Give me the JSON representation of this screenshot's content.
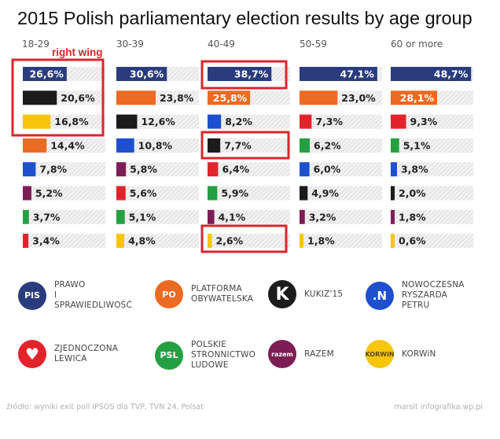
{
  "title": "2015 Polish parliamentary election results by age group",
  "annotation": "right wing",
  "chart_data": {
    "type": "bar",
    "title": "2015 Polish parliamentary election results by age group",
    "age_groups": [
      {
        "label": "18-29",
        "bars": [
          {
            "party": "pis",
            "color": "#2a3c7d",
            "value": 26.6,
            "label": "26,6%"
          },
          {
            "party": "kukiz",
            "color": "#1b1b1b",
            "value": 20.6,
            "label": "20,6%"
          },
          {
            "party": "korwin",
            "color": "#f7c60a",
            "value": 16.8,
            "label": "16,8%"
          },
          {
            "party": "po",
            "color": "#ec6a21",
            "value": 14.4,
            "label": "14,4%"
          },
          {
            "party": "nowoczesna",
            "color": "#1d4fcf",
            "value": 7.8,
            "label": "7,8%"
          },
          {
            "party": "razem",
            "color": "#7d1d55",
            "value": 5.2,
            "label": "5,2%"
          },
          {
            "party": "psl",
            "color": "#24a043",
            "value": 3.7,
            "label": "3,7%"
          },
          {
            "party": "lewica",
            "color": "#e3232b",
            "value": 3.4,
            "label": "3,4%"
          }
        ]
      },
      {
        "label": "30-39",
        "bars": [
          {
            "party": "pis",
            "color": "#2a3c7d",
            "value": 30.6,
            "label": "30,6%"
          },
          {
            "party": "po",
            "color": "#ec6a21",
            "value": 23.8,
            "label": "23,8%"
          },
          {
            "party": "kukiz",
            "color": "#1b1b1b",
            "value": 12.6,
            "label": "12,6%"
          },
          {
            "party": "nowoczesna",
            "color": "#1d4fcf",
            "value": 10.8,
            "label": "10,8%"
          },
          {
            "party": "razem",
            "color": "#7d1d55",
            "value": 5.8,
            "label": "5,8%"
          },
          {
            "party": "lewica",
            "color": "#e3232b",
            "value": 5.6,
            "label": "5,6%"
          },
          {
            "party": "psl",
            "color": "#24a043",
            "value": 5.1,
            "label": "5,1%"
          },
          {
            "party": "korwin",
            "color": "#f7c60a",
            "value": 4.8,
            "label": "4,8%"
          }
        ]
      },
      {
        "label": "40-49",
        "bars": [
          {
            "party": "pis",
            "color": "#2a3c7d",
            "value": 38.7,
            "label": "38,7%"
          },
          {
            "party": "po",
            "color": "#ec6a21",
            "value": 25.8,
            "label": "25,8%"
          },
          {
            "party": "nowoczesna",
            "color": "#1d4fcf",
            "value": 8.2,
            "label": "8,2%"
          },
          {
            "party": "kukiz",
            "color": "#1b1b1b",
            "value": 7.7,
            "label": "7,7%"
          },
          {
            "party": "lewica",
            "color": "#e3232b",
            "value": 6.4,
            "label": "6,4%"
          },
          {
            "party": "psl",
            "color": "#24a043",
            "value": 5.9,
            "label": "5,9%"
          },
          {
            "party": "razem",
            "color": "#7d1d55",
            "value": 4.1,
            "label": "4,1%"
          },
          {
            "party": "korwin",
            "color": "#f7c60a",
            "value": 2.6,
            "label": "2,6%"
          }
        ]
      },
      {
        "label": "50-59",
        "bars": [
          {
            "party": "pis",
            "color": "#2a3c7d",
            "value": 47.1,
            "label": "47,1%"
          },
          {
            "party": "po",
            "color": "#ec6a21",
            "value": 23.0,
            "label": "23,0%"
          },
          {
            "party": "lewica",
            "color": "#e3232b",
            "value": 7.3,
            "label": "7,3%"
          },
          {
            "party": "psl",
            "color": "#24a043",
            "value": 6.2,
            "label": "6,2%"
          },
          {
            "party": "nowoczesna",
            "color": "#1d4fcf",
            "value": 6.0,
            "label": "6,0%"
          },
          {
            "party": "kukiz",
            "color": "#1b1b1b",
            "value": 4.9,
            "label": "4,9%"
          },
          {
            "party": "razem",
            "color": "#7d1d55",
            "value": 3.2,
            "label": "3,2%"
          },
          {
            "party": "korwin",
            "color": "#f7c60a",
            "value": 1.8,
            "label": "1,8%"
          }
        ]
      },
      {
        "label": "60 or more",
        "bars": [
          {
            "party": "pis",
            "color": "#2a3c7d",
            "value": 48.7,
            "label": "48,7%"
          },
          {
            "party": "po",
            "color": "#ec6a21",
            "value": 28.1,
            "label": "28,1%"
          },
          {
            "party": "lewica",
            "color": "#e3232b",
            "value": 9.3,
            "label": "9,3%"
          },
          {
            "party": "psl",
            "color": "#24a043",
            "value": 5.1,
            "label": "5,1%"
          },
          {
            "party": "nowoczesna",
            "color": "#1d4fcf",
            "value": 3.8,
            "label": "3,8%"
          },
          {
            "party": "kukiz",
            "color": "#1b1b1b",
            "value": 2.0,
            "label": "2,0%"
          },
          {
            "party": "razem",
            "color": "#7d1d55",
            "value": 1.8,
            "label": "1,8%"
          },
          {
            "party": "korwin",
            "color": "#f7c60a",
            "value": 0.6,
            "label": "0,6%"
          }
        ]
      }
    ],
    "highlight_color": "#d9262d",
    "xlim": [
      0,
      50
    ]
  },
  "legend": [
    {
      "key": "pis",
      "line1": "PRAWO",
      "line2": "I SPRAWIEDLIWOŚĆ",
      "line3": "",
      "color": "#2a3c7d",
      "icon_text": "PiS"
    },
    {
      "key": "po",
      "line1": "PLATFORMA",
      "line2": "OBYWATELSKA",
      "line3": "",
      "color": "#ec6a21",
      "icon_text": "PO"
    },
    {
      "key": "kukiz",
      "line1": "KUKIZ'15",
      "line2": "",
      "line3": "",
      "color": "#1b1b1b",
      "icon_text": "K"
    },
    {
      "key": "nowoczesna",
      "line1": "NOWOCZESNA",
      "line2": "RYSZARDA PETRU",
      "line3": "",
      "color": "#1d4fcf",
      "icon_text": ".N"
    },
    {
      "key": "lewica",
      "line1": "ZJEDNOCZONA",
      "line2": "LEWICA",
      "line3": "",
      "color": "#e3232b",
      "icon_text": "♥"
    },
    {
      "key": "psl",
      "line1": "POLSKIE",
      "line2": "STRONNICTWO",
      "line3": "LUDOWE",
      "color": "#24a043",
      "icon_text": "PSL"
    },
    {
      "key": "razem",
      "line1": "RAZEM",
      "line2": "",
      "line3": "",
      "color": "#7d1d55",
      "icon_text": "razem"
    },
    {
      "key": "korwin",
      "line1": "KORWiN",
      "line2": "",
      "line3": "",
      "color": "#f7c60a",
      "icon_text": "KORWiN"
    }
  ],
  "source": "źródło: wyniki exit poll IPSOS dla TVP, TVN 24, Polsat",
  "credit": "marsit infografika.wp.pl"
}
